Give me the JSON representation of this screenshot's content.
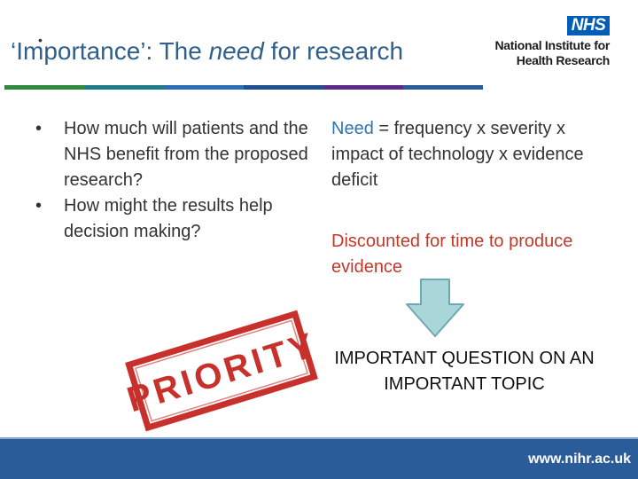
{
  "title": {
    "bullet": "•",
    "part1": "‘Importance’: The ",
    "emphasis": "need",
    "part2": " for research"
  },
  "logo": {
    "nhs": "NHS",
    "line1": "National Institute for",
    "line2": "Health Research"
  },
  "bullets": [
    "How much will patients and the NHS benefit from the proposed research?",
    "How might the results help decision making?"
  ],
  "need": {
    "keyword": "Need",
    "formula": " = frequency x severity x impact of technology x evidence deficit"
  },
  "discount": "Discounted for time to produce evidence",
  "conclusion": "IMPORTANT QUESTION ON AN IMPORTANT TOPIC",
  "stamp": {
    "text": "PRIORITY"
  },
  "footer": {
    "url": "www.nihr.ac.uk"
  },
  "colors": {
    "title": "#2f5f8a",
    "accent_blue": "#2f74b5",
    "accent_red": "#c0392b",
    "stamp_red": "#c8312b",
    "footer": "#2a5c99",
    "arrow_fill": "#a9d7d9",
    "arrow_stroke": "#6ea8b0",
    "color_bar": [
      "#2e8b3e",
      "#1f7a8c",
      "#2a6fb5",
      "#1d4f91",
      "#5b2b8c",
      "#2a5c99"
    ]
  }
}
